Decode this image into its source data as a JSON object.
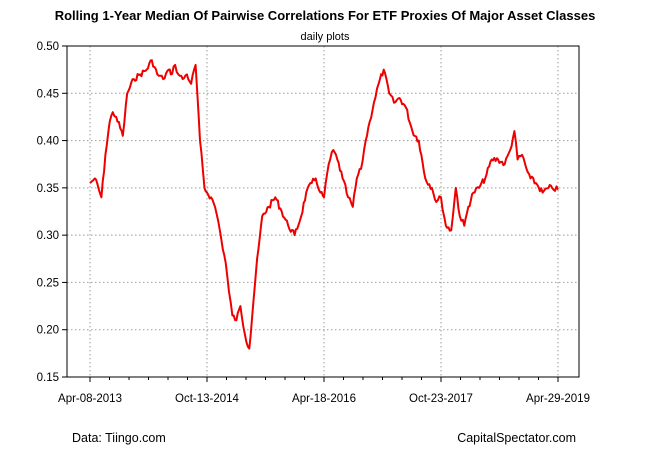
{
  "chart_data": {
    "type": "line",
    "title": "Rolling 1-Year Median Of Pairwise Correlations For ETF Proxies Of Major Asset Classes",
    "subtitle": "daily plots",
    "xlabel": "",
    "ylabel": "",
    "ylim": [
      0.15,
      0.5
    ],
    "y_ticks": [
      "0.15",
      "0.20",
      "0.25",
      "0.30",
      "0.35",
      "0.40",
      "0.45",
      "0.50"
    ],
    "x_ticks": [
      {
        "label": "Apr-08-2013",
        "date": "2013-04-08"
      },
      {
        "label": "Oct-13-2014",
        "date": "2014-10-13"
      },
      {
        "label": "Apr-18-2016",
        "date": "2016-04-18"
      },
      {
        "label": "Oct-23-2017",
        "date": "2017-10-23"
      },
      {
        "label": "Apr-29-2019",
        "date": "2019-04-29"
      }
    ],
    "grid": true,
    "line_color": "#ee0000",
    "series": [
      {
        "x": [
          "2013-04-08",
          "2013-05-01",
          "2013-06-01",
          "2013-06-20",
          "2013-07-10",
          "2013-07-25",
          "2013-08-10",
          "2013-09-10",
          "2013-10-01",
          "2013-11-01",
          "2013-12-01",
          "2014-01-01",
          "2014-01-25",
          "2014-02-20",
          "2014-03-20",
          "2014-04-15",
          "2014-04-25",
          "2014-05-15",
          "2014-05-31",
          "2014-06-20",
          "2014-07-10",
          "2014-07-30",
          "2014-08-20",
          "2014-09-10",
          "2014-10-01",
          "2014-10-13",
          "2014-11-01",
          "2014-11-20",
          "2014-12-05",
          "2014-12-20",
          "2015-01-10",
          "2015-01-25",
          "2015-02-10",
          "2015-03-01",
          "2015-03-20",
          "2015-04-10",
          "2015-05-01",
          "2015-06-01",
          "2015-07-01",
          "2015-08-01",
          "2015-09-01",
          "2015-10-01",
          "2015-11-01",
          "2015-12-01",
          "2016-01-01",
          "2016-01-25",
          "2016-02-20",
          "2016-03-10",
          "2016-04-01",
          "2016-04-18",
          "2016-05-10",
          "2016-06-01",
          "2016-06-20",
          "2016-07-15",
          "2016-08-10",
          "2016-09-01",
          "2016-09-20",
          "2016-10-10",
          "2016-11-01",
          "2016-11-20",
          "2016-12-10",
          "2017-01-01",
          "2017-01-25",
          "2017-02-20",
          "2017-03-15",
          "2017-04-10",
          "2017-05-10",
          "2017-06-10",
          "2017-07-10",
          "2017-08-10",
          "2017-09-10",
          "2017-10-01",
          "2017-10-23",
          "2017-11-15",
          "2017-12-10",
          "2018-01-01",
          "2018-01-20",
          "2018-02-10",
          "2018-03-01",
          "2018-03-25",
          "2018-04-20",
          "2018-05-20",
          "2018-06-20",
          "2018-07-20",
          "2018-08-20",
          "2018-09-15",
          "2018-10-05",
          "2018-10-20",
          "2018-11-10",
          "2018-12-01",
          "2018-12-20",
          "2019-01-15",
          "2019-02-15",
          "2019-03-15",
          "2019-04-01",
          "2019-04-29"
        ],
        "values": [
          0.355,
          0.36,
          0.34,
          0.385,
          0.42,
          0.43,
          0.425,
          0.405,
          0.45,
          0.465,
          0.47,
          0.475,
          0.485,
          0.47,
          0.465,
          0.475,
          0.47,
          0.48,
          0.47,
          0.465,
          0.47,
          0.46,
          0.48,
          0.4,
          0.35,
          0.345,
          0.34,
          0.33,
          0.315,
          0.295,
          0.27,
          0.24,
          0.215,
          0.21,
          0.225,
          0.195,
          0.18,
          0.26,
          0.32,
          0.33,
          0.34,
          0.325,
          0.31,
          0.3,
          0.32,
          0.345,
          0.355,
          0.36,
          0.345,
          0.34,
          0.375,
          0.39,
          0.38,
          0.36,
          0.34,
          0.33,
          0.36,
          0.37,
          0.4,
          0.42,
          0.44,
          0.46,
          0.475,
          0.45,
          0.44,
          0.445,
          0.435,
          0.41,
          0.4,
          0.36,
          0.35,
          0.335,
          0.34,
          0.31,
          0.305,
          0.35,
          0.32,
          0.31,
          0.33,
          0.345,
          0.35,
          0.36,
          0.38,
          0.38,
          0.375,
          0.39,
          0.41,
          0.38,
          0.385,
          0.37,
          0.36,
          0.355,
          0.345,
          0.35,
          0.35,
          0.348
        ]
      }
    ],
    "footer_left": "Data: Tiingo.com",
    "footer_right": "CapitalSpectator.com"
  }
}
